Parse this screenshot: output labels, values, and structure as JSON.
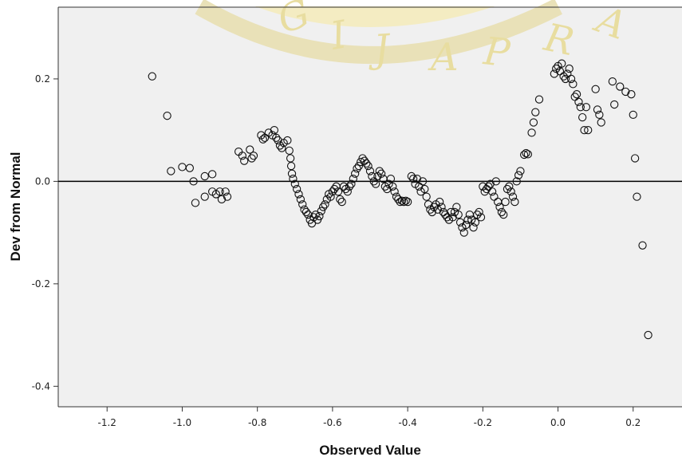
{
  "watermark": {
    "letters": [
      "G",
      "I",
      "J",
      "A",
      "P",
      "R",
      "A"
    ],
    "color": "#f2d35a"
  },
  "chart_data": {
    "type": "scatter",
    "title": "",
    "xlabel": "Observed Value",
    "ylabel": "Dev from Normal",
    "xlim": [
      -1.33,
      0.33
    ],
    "ylim": [
      -0.44,
      0.34
    ],
    "xticks": [
      -1.2,
      -1.0,
      -0.8,
      -0.6,
      -0.4,
      -0.2,
      0.0,
      0.2
    ],
    "xtick_labels": [
      "-1.2",
      "-1.0",
      "-0.8",
      "-0.6",
      "-0.4",
      "-0.2",
      "0.0",
      "0.2"
    ],
    "yticks": [
      0.2,
      0.0,
      -0.2,
      -0.4
    ],
    "ytick_labels": [
      "0.2",
      "0.0",
      "-0.2",
      "-0.4"
    ],
    "reference_line_y": 0.0,
    "plot_background": "#f0f0f0",
    "marker_color": "#111111",
    "grid": false,
    "points": [
      [
        -1.08,
        0.205
      ],
      [
        -1.04,
        0.128
      ],
      [
        -1.03,
        0.02
      ],
      [
        -1.0,
        0.028
      ],
      [
        -0.98,
        0.026
      ],
      [
        -0.97,
        0.0
      ],
      [
        -0.965,
        -0.042
      ],
      [
        -0.94,
        0.01
      ],
      [
        -0.94,
        -0.03
      ],
      [
        -0.92,
        0.014
      ],
      [
        -0.92,
        -0.02
      ],
      [
        -0.91,
        -0.025
      ],
      [
        -0.9,
        -0.02
      ],
      [
        -0.895,
        -0.035
      ],
      [
        -0.885,
        -0.02
      ],
      [
        -0.88,
        -0.03
      ],
      [
        -0.85,
        0.058
      ],
      [
        -0.84,
        0.05
      ],
      [
        -0.835,
        0.04
      ],
      [
        -0.82,
        0.062
      ],
      [
        -0.815,
        0.045
      ],
      [
        -0.81,
        0.05
      ],
      [
        -0.79,
        0.09
      ],
      [
        -0.785,
        0.082
      ],
      [
        -0.78,
        0.085
      ],
      [
        -0.77,
        0.095
      ],
      [
        -0.76,
        0.09
      ],
      [
        -0.755,
        0.1
      ],
      [
        -0.75,
        0.085
      ],
      [
        -0.745,
        0.08
      ],
      [
        -0.74,
        0.07
      ],
      [
        -0.735,
        0.065
      ],
      [
        -0.73,
        0.075
      ],
      [
        -0.72,
        0.08
      ],
      [
        -0.715,
        0.06
      ],
      [
        -0.712,
        0.045
      ],
      [
        -0.71,
        0.03
      ],
      [
        -0.708,
        0.015
      ],
      [
        -0.705,
        0.005
      ],
      [
        -0.7,
        -0.005
      ],
      [
        -0.695,
        -0.015
      ],
      [
        -0.69,
        -0.025
      ],
      [
        -0.685,
        -0.035
      ],
      [
        -0.68,
        -0.045
      ],
      [
        -0.675,
        -0.055
      ],
      [
        -0.67,
        -0.06
      ],
      [
        -0.665,
        -0.065
      ],
      [
        -0.66,
        -0.075
      ],
      [
        -0.655,
        -0.082
      ],
      [
        -0.65,
        -0.07
      ],
      [
        -0.645,
        -0.065
      ],
      [
        -0.64,
        -0.075
      ],
      [
        -0.635,
        -0.068
      ],
      [
        -0.63,
        -0.058
      ],
      [
        -0.625,
        -0.05
      ],
      [
        -0.62,
        -0.045
      ],
      [
        -0.615,
        -0.035
      ],
      [
        -0.61,
        -0.025
      ],
      [
        -0.605,
        -0.03
      ],
      [
        -0.6,
        -0.02
      ],
      [
        -0.595,
        -0.015
      ],
      [
        -0.59,
        -0.01
      ],
      [
        -0.585,
        -0.02
      ],
      [
        -0.58,
        -0.035
      ],
      [
        -0.575,
        -0.04
      ],
      [
        -0.57,
        -0.01
      ],
      [
        -0.565,
        -0.015
      ],
      [
        -0.56,
        -0.02
      ],
      [
        -0.555,
        -0.01
      ],
      [
        -0.55,
        -0.005
      ],
      [
        -0.545,
        0.005
      ],
      [
        -0.54,
        0.015
      ],
      [
        -0.535,
        0.025
      ],
      [
        -0.53,
        0.03
      ],
      [
        -0.525,
        0.038
      ],
      [
        -0.52,
        0.045
      ],
      [
        -0.515,
        0.04
      ],
      [
        -0.51,
        0.035
      ],
      [
        -0.505,
        0.03
      ],
      [
        -0.5,
        0.02
      ],
      [
        -0.495,
        0.01
      ],
      [
        -0.49,
        0.0
      ],
      [
        -0.485,
        -0.005
      ],
      [
        -0.48,
        0.01
      ],
      [
        -0.475,
        0.02
      ],
      [
        -0.47,
        0.015
      ],
      [
        -0.465,
        0.005
      ],
      [
        -0.46,
        -0.01
      ],
      [
        -0.455,
        -0.015
      ],
      [
        -0.45,
        -0.005
      ],
      [
        -0.445,
        0.005
      ],
      [
        -0.44,
        -0.01
      ],
      [
        -0.435,
        -0.02
      ],
      [
        -0.43,
        -0.03
      ],
      [
        -0.425,
        -0.035
      ],
      [
        -0.42,
        -0.04
      ],
      [
        -0.415,
        -0.038
      ],
      [
        -0.41,
        -0.04
      ],
      [
        -0.405,
        -0.038
      ],
      [
        -0.4,
        -0.04
      ],
      [
        -0.39,
        0.01
      ],
      [
        -0.385,
        0.005
      ],
      [
        -0.38,
        -0.005
      ],
      [
        -0.375,
        0.005
      ],
      [
        -0.37,
        -0.01
      ],
      [
        -0.365,
        -0.02
      ],
      [
        -0.36,
        0.0
      ],
      [
        -0.355,
        -0.015
      ],
      [
        -0.35,
        -0.03
      ],
      [
        -0.345,
        -0.045
      ],
      [
        -0.34,
        -0.055
      ],
      [
        -0.335,
        -0.06
      ],
      [
        -0.33,
        -0.05
      ],
      [
        -0.325,
        -0.045
      ],
      [
        -0.32,
        -0.055
      ],
      [
        -0.315,
        -0.04
      ],
      [
        -0.31,
        -0.05
      ],
      [
        -0.305,
        -0.06
      ],
      [
        -0.3,
        -0.065
      ],
      [
        -0.295,
        -0.07
      ],
      [
        -0.29,
        -0.075
      ],
      [
        -0.285,
        -0.06
      ],
      [
        -0.28,
        -0.07
      ],
      [
        -0.275,
        -0.06
      ],
      [
        -0.27,
        -0.05
      ],
      [
        -0.265,
        -0.065
      ],
      [
        -0.26,
        -0.08
      ],
      [
        -0.255,
        -0.09
      ],
      [
        -0.25,
        -0.1
      ],
      [
        -0.245,
        -0.085
      ],
      [
        -0.24,
        -0.075
      ],
      [
        -0.235,
        -0.065
      ],
      [
        -0.23,
        -0.075
      ],
      [
        -0.225,
        -0.09
      ],
      [
        -0.22,
        -0.08
      ],
      [
        -0.215,
        -0.065
      ],
      [
        -0.21,
        -0.06
      ],
      [
        -0.205,
        -0.07
      ],
      [
        -0.2,
        -0.01
      ],
      [
        -0.195,
        -0.02
      ],
      [
        -0.19,
        -0.015
      ],
      [
        -0.185,
        -0.01
      ],
      [
        -0.18,
        -0.005
      ],
      [
        -0.175,
        -0.02
      ],
      [
        -0.17,
        -0.03
      ],
      [
        -0.165,
        0.0
      ],
      [
        -0.16,
        -0.04
      ],
      [
        -0.155,
        -0.05
      ],
      [
        -0.15,
        -0.06
      ],
      [
        -0.145,
        -0.065
      ],
      [
        -0.14,
        -0.04
      ],
      [
        -0.135,
        -0.015
      ],
      [
        -0.13,
        -0.01
      ],
      [
        -0.125,
        -0.02
      ],
      [
        -0.12,
        -0.03
      ],
      [
        -0.115,
        -0.04
      ],
      [
        -0.11,
        0.0
      ],
      [
        -0.105,
        0.012
      ],
      [
        -0.1,
        0.02
      ],
      [
        -0.09,
        0.052
      ],
      [
        -0.085,
        0.055
      ],
      [
        -0.08,
        0.053
      ],
      [
        -0.07,
        0.095
      ],
      [
        -0.065,
        0.115
      ],
      [
        -0.06,
        0.135
      ],
      [
        -0.05,
        0.16
      ],
      [
        -0.01,
        0.21
      ],
      [
        -0.005,
        0.22
      ],
      [
        0.0,
        0.225
      ],
      [
        0.005,
        0.215
      ],
      [
        0.01,
        0.23
      ],
      [
        0.015,
        0.205
      ],
      [
        0.02,
        0.2
      ],
      [
        0.025,
        0.21
      ],
      [
        0.03,
        0.22
      ],
      [
        0.035,
        0.2
      ],
      [
        0.04,
        0.19
      ],
      [
        0.045,
        0.165
      ],
      [
        0.05,
        0.17
      ],
      [
        0.055,
        0.155
      ],
      [
        0.06,
        0.145
      ],
      [
        0.065,
        0.125
      ],
      [
        0.07,
        0.1
      ],
      [
        0.075,
        0.145
      ],
      [
        0.08,
        0.1
      ],
      [
        0.1,
        0.18
      ],
      [
        0.105,
        0.14
      ],
      [
        0.11,
        0.13
      ],
      [
        0.115,
        0.115
      ],
      [
        0.145,
        0.195
      ],
      [
        0.15,
        0.15
      ],
      [
        0.165,
        0.185
      ],
      [
        0.18,
        0.175
      ],
      [
        0.195,
        0.17
      ],
      [
        0.2,
        0.13
      ],
      [
        0.205,
        0.045
      ],
      [
        0.21,
        -0.03
      ],
      [
        0.225,
        -0.125
      ],
      [
        0.24,
        -0.3
      ]
    ]
  }
}
